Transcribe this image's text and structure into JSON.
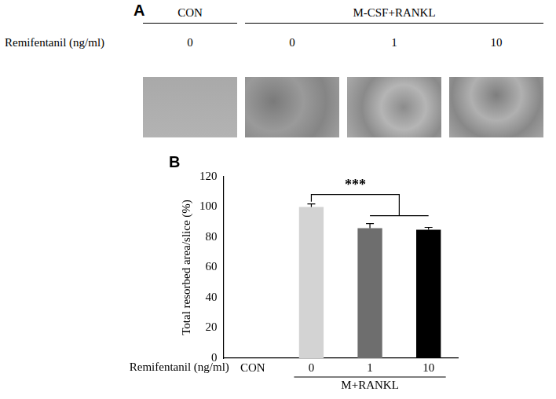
{
  "panel_a": {
    "label": "A",
    "groups": [
      {
        "text": "CON",
        "columns": 1
      },
      {
        "text": "M-CSF+RANKL",
        "columns": 3
      }
    ],
    "row_label": "Remifentanil (ng/ml)",
    "columns": [
      "0",
      "0",
      "1",
      "10"
    ]
  },
  "chart_data": {
    "panel": "B",
    "type": "bar",
    "y_label": "Total resorbed area/slice (%)",
    "x_row_label": "Remifentanil (ng/ml)",
    "categories": [
      "CON",
      "0",
      "1",
      "10"
    ],
    "values": [
      null,
      100,
      86,
      85
    ],
    "errors": [
      null,
      2,
      3,
      1.5
    ],
    "colors": [
      "#d3d3d3",
      "#d3d3d3",
      "#6e6e6e",
      "#000000"
    ],
    "ylim": [
      0,
      120
    ],
    "yticks": [
      0,
      20,
      40,
      60,
      80,
      100,
      120
    ],
    "grid": false,
    "group_label": {
      "text": "M+RANKL",
      "from": "0",
      "to": "10"
    },
    "significance": {
      "label": "***",
      "from": "0",
      "to": [
        "1",
        "10"
      ]
    }
  }
}
